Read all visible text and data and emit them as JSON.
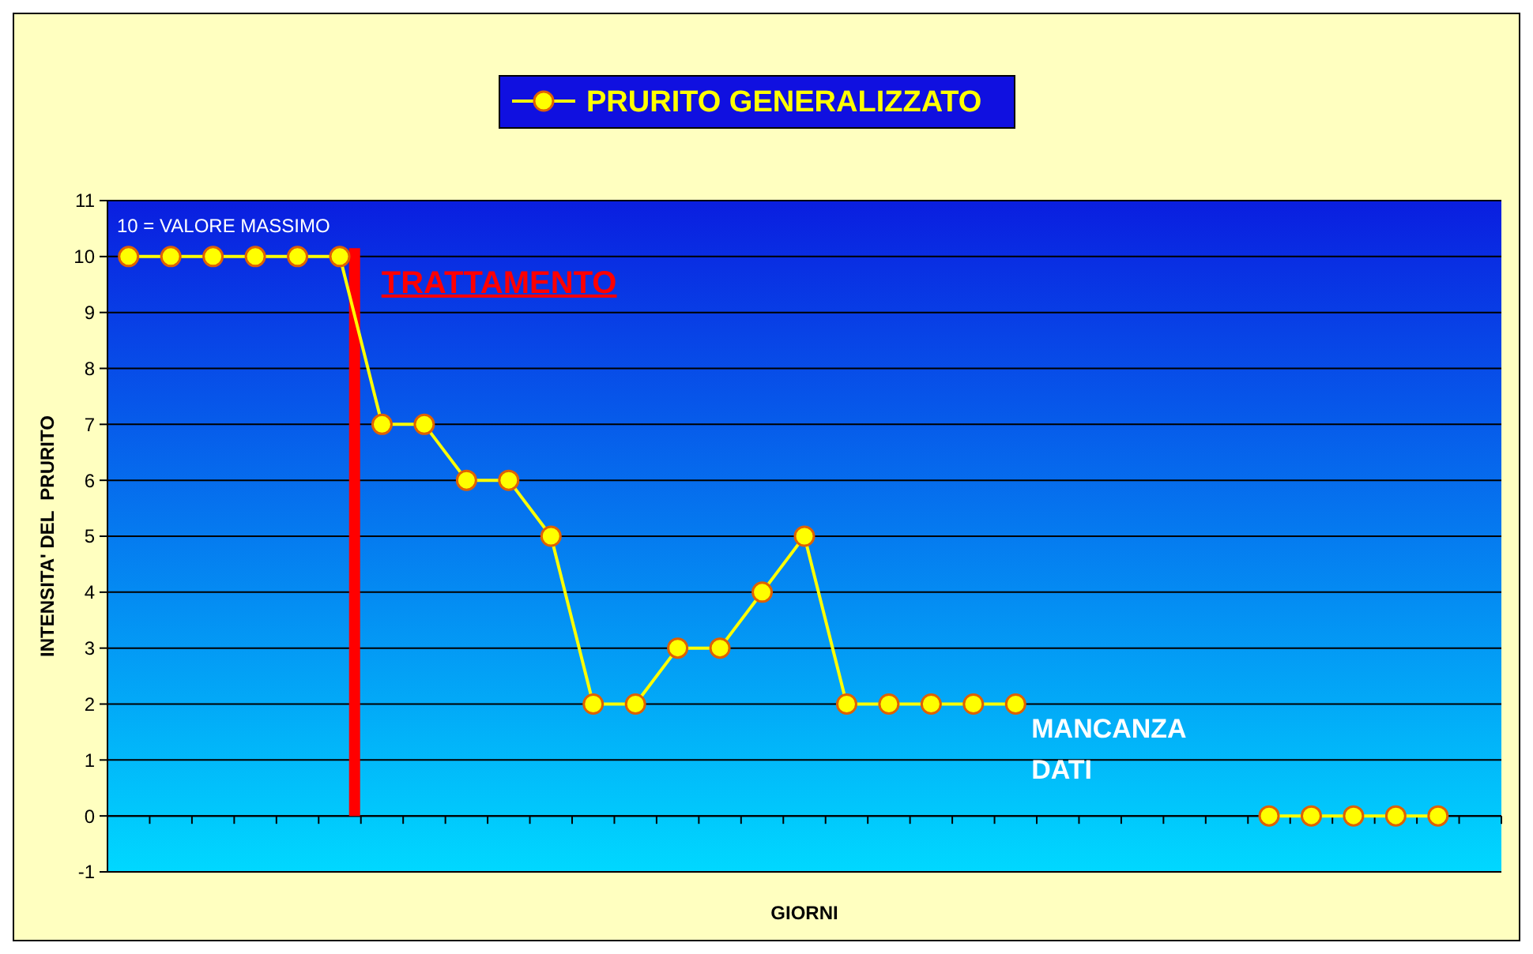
{
  "chart_data": {
    "type": "line",
    "xlabel": "GIORNI",
    "ylabel": "INTENSITA' DEL  PRURITO",
    "categories": [
      null,
      null,
      null,
      null,
      null,
      null,
      null,
      null,
      null,
      null,
      null,
      null,
      null,
      null,
      null,
      null,
      null,
      null,
      null,
      null,
      null,
      null,
      null,
      null,
      null,
      null,
      null,
      null,
      null,
      null,
      null,
      null
    ],
    "series": [
      {
        "name": "PRURITO GENERALIZZATO",
        "color": "#ffff00",
        "values": [
          10,
          10,
          10,
          10,
          10,
          10,
          7,
          7,
          6,
          6,
          5,
          2,
          2,
          3,
          3,
          4,
          5,
          2,
          2,
          2,
          2,
          2,
          null,
          null,
          null,
          null,
          null,
          null,
          null,
          null,
          null,
          null
        ]
      },
      {
        "color": "#ffff00",
        "values": [
          null,
          null,
          null,
          null,
          null,
          null,
          null,
          null,
          null,
          null,
          null,
          null,
          null,
          null,
          null,
          null,
          null,
          null,
          null,
          null,
          null,
          null,
          null,
          null,
          null,
          null,
          null,
          0,
          0,
          0,
          0,
          0
        ]
      }
    ],
    "ylim": [
      -1,
      11
    ],
    "yticks": [
      -1,
      0,
      1,
      2,
      3,
      4,
      5,
      6,
      7,
      8,
      9,
      10,
      11
    ],
    "grid": "y",
    "legend": "top",
    "marker": "circle",
    "line_style": "solid",
    "annotations": [
      "10 = VALORE MASSIMO",
      "TRATTAMENTO",
      "MANCANZA DATI"
    ]
  }
}
